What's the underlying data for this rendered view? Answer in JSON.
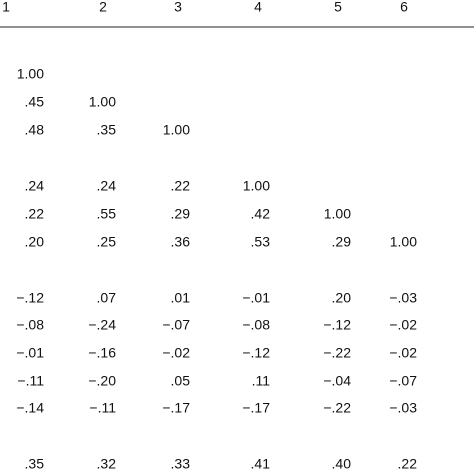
{
  "table": {
    "header": [
      "1",
      "2",
      "3",
      "4",
      "5",
      "6"
    ],
    "rows": [
      [
        "1.00"
      ],
      [
        ".45",
        "1.00"
      ],
      [
        ".48",
        ".35",
        "1.00"
      ],
      [
        ".24",
        ".24",
        ".22",
        "1.00"
      ],
      [
        ".22",
        ".55",
        ".29",
        ".42",
        "1.00"
      ],
      [
        ".20",
        ".25",
        ".36",
        ".53",
        ".29",
        "1.00"
      ],
      [
        "−.12",
        ".07",
        ".01",
        "−.01",
        ".20",
        "−.03"
      ],
      [
        "−.08",
        "−.24",
        "−.07",
        "−.08",
        "−.12",
        "−.02"
      ],
      [
        "−.01",
        "−.16",
        "−.02",
        "−.12",
        "−.22",
        "−.02"
      ],
      [
        "−.11",
        "−.20",
        ".05",
        ".11",
        "−.04",
        "−.07"
      ],
      [
        "−.14",
        "−.11",
        "−.17",
        "−.17",
        "−.22",
        "−.03"
      ],
      [
        ".35",
        ".32",
        ".33",
        ".41",
        ".40",
        ".22"
      ]
    ]
  }
}
